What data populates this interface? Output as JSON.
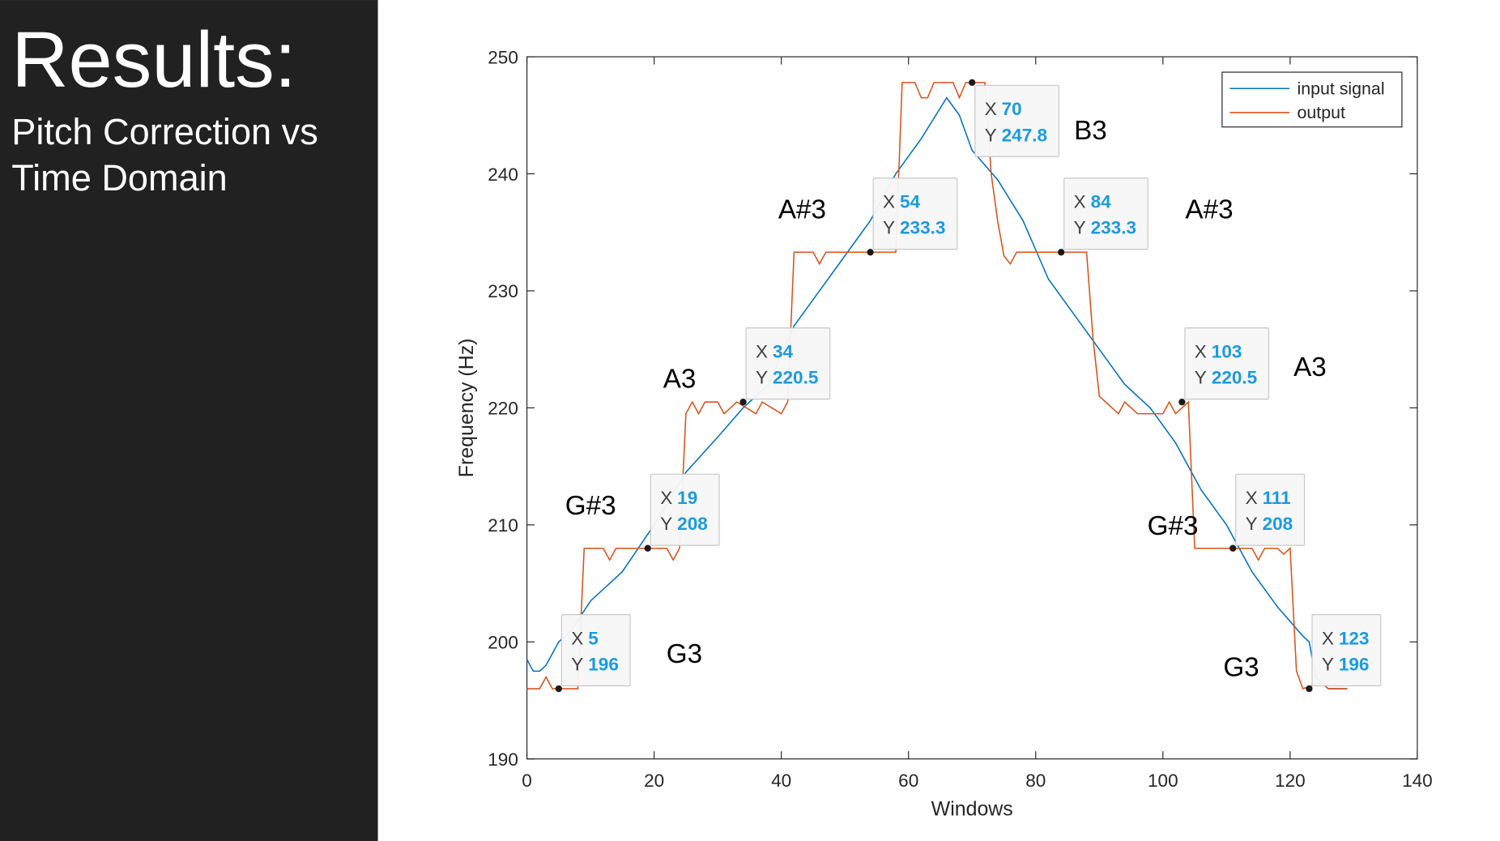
{
  "slide": {
    "title": "Results:",
    "subtitle": [
      "Pitch Correction vs",
      "Time Domain"
    ]
  },
  "chart_data": {
    "type": "line",
    "xlabel": "Windows",
    "ylabel": "Frequency (Hz)",
    "xlim": [
      0,
      140
    ],
    "ylim": [
      190,
      250
    ],
    "xticks": [
      0,
      20,
      40,
      60,
      80,
      100,
      120,
      140
    ],
    "yticks": [
      190,
      200,
      210,
      220,
      230,
      240,
      250
    ],
    "grid": false,
    "legend_position": "top-right",
    "series": [
      {
        "name": "input signal",
        "color": "#0072bd",
        "x": [
          0,
          1,
          2,
          3,
          5,
          7,
          10,
          15,
          20,
          25,
          30,
          34,
          38,
          42,
          46,
          50,
          54,
          58,
          62,
          66,
          68,
          70,
          74,
          78,
          82,
          86,
          90,
          94,
          98,
          102,
          106,
          110,
          114,
          118,
          122,
          123,
          124,
          126,
          129
        ],
        "values": [
          198.5,
          197.5,
          197.5,
          198,
          200,
          201,
          203.5,
          206,
          210,
          214.5,
          217.5,
          220,
          222,
          227,
          230,
          233,
          236,
          240,
          243,
          246.5,
          245,
          242,
          239.5,
          236,
          231,
          228,
          225,
          222,
          220,
          217,
          213,
          210,
          206,
          203,
          200.5,
          200,
          197,
          196,
          196
        ]
      },
      {
        "name": "output",
        "color": "#d95319",
        "x": [
          0,
          2,
          3,
          4,
          8,
          9,
          12,
          13,
          14,
          22,
          23,
          24,
          25,
          26,
          27,
          28,
          30,
          31,
          33,
          36,
          37,
          40,
          41,
          42,
          45,
          46,
          47,
          58,
          59,
          61,
          62,
          63,
          64,
          67,
          68,
          69,
          72,
          73,
          74,
          75,
          76,
          77,
          88,
          89,
          90,
          92,
          93,
          94,
          96,
          100,
          101,
          102,
          104,
          105,
          114,
          115,
          116,
          118,
          119,
          120,
          121,
          122,
          125,
          126,
          129
        ],
        "values": [
          196,
          196,
          197,
          196,
          196,
          208,
          208,
          207,
          208,
          208,
          207,
          208,
          219.5,
          220.5,
          219.5,
          220.5,
          220.5,
          219.5,
          220.5,
          219.5,
          220.5,
          219.5,
          220.5,
          233.3,
          233.3,
          232.3,
          233.3,
          233.3,
          247.8,
          247.8,
          246.5,
          246.5,
          247.8,
          247.8,
          246.5,
          247.8,
          247.8,
          240,
          236,
          233,
          232.3,
          233.3,
          233.3,
          226,
          221,
          220,
          219.5,
          220.5,
          219.5,
          219.5,
          220.5,
          219.5,
          220.5,
          208,
          208,
          207,
          208,
          208,
          207.5,
          208,
          197.5,
          196,
          196.5,
          196,
          196
        ]
      }
    ],
    "datatip_labels": [
      "X",
      "Y"
    ],
    "datatips": [
      {
        "x": 5,
        "y": 196,
        "note": "G3"
      },
      {
        "x": 19,
        "y": 208,
        "note": "G#3"
      },
      {
        "x": 34,
        "y": 220.5,
        "note": "A3"
      },
      {
        "x": 54,
        "y": 233.3,
        "note": "A#3"
      },
      {
        "x": 70,
        "y": 247.8,
        "note": "B3"
      },
      {
        "x": 84,
        "y": 233.3,
        "note": "A#3"
      },
      {
        "x": 103,
        "y": 220.5,
        "note": "A3"
      },
      {
        "x": 111,
        "y": 208,
        "note": "G#3"
      },
      {
        "x": 123,
        "y": 196,
        "note": "G3"
      }
    ]
  }
}
